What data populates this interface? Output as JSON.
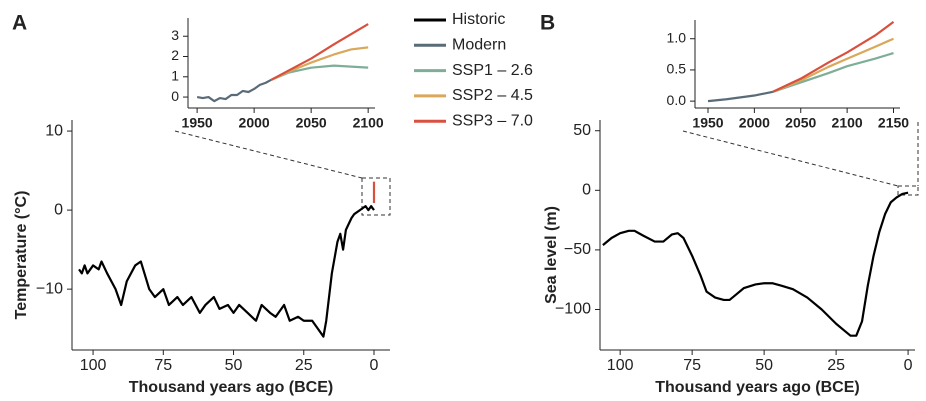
{
  "chart_data": [
    {
      "type": "line",
      "panel": "A",
      "xlabel": "Thousand years ago (BCE)",
      "ylabel": "Temperature (°C)",
      "xlim": [
        107.5,
        -5.7
      ],
      "ylim": [
        -17.7,
        11.4
      ],
      "xticks": [
        100,
        75,
        50,
        25,
        0
      ],
      "yticks": [
        {
          "value": -10,
          "label": "−10"
        },
        0,
        10
      ],
      "series": [
        {
          "name": "Historic",
          "color": "#000000",
          "x": [
            105,
            104,
            103,
            102,
            100,
            98,
            97,
            95,
            92,
            90,
            88,
            85,
            83,
            80,
            78,
            75,
            73,
            70,
            68,
            65,
            62,
            60,
            57,
            55,
            52,
            50,
            48,
            45,
            42,
            40,
            37,
            35,
            32,
            30,
            27,
            25,
            22,
            20,
            18,
            17,
            15,
            13,
            12,
            11,
            10,
            8,
            7,
            5,
            3,
            2,
            1,
            0
          ],
          "values": [
            -7.5,
            -8,
            -7,
            -8,
            -7,
            -7.5,
            -6.5,
            -8,
            -10,
            -12,
            -9,
            -7,
            -6.5,
            -10,
            -11,
            -10,
            -12,
            -11,
            -12,
            -11,
            -13,
            -12,
            -11,
            -12.5,
            -12,
            -13,
            -12,
            -13,
            -14,
            -12,
            -13,
            -13.5,
            -12,
            -14,
            -13.5,
            -14,
            -14,
            -15,
            -16,
            -14,
            -8,
            -4,
            -3,
            -5,
            -2.5,
            -1,
            -0.5,
            0,
            0.5,
            0,
            0.5,
            0
          ]
        },
        {
          "name": "SSP3 – 7.0",
          "color": "#d9503e",
          "x": [
            0,
            0
          ],
          "values": [
            0.9,
            3.6
          ]
        }
      ]
    },
    {
      "type": "line",
      "xlim": [
        1942,
        2106
      ],
      "ylim": [
        -0.54,
        3.9
      ],
      "xticks": [
        1950,
        2000,
        2050,
        2100
      ],
      "yticks": [
        0,
        1,
        2,
        3
      ],
      "series": [
        {
          "name": "Modern",
          "color": "#5a6b78",
          "x": [
            1950,
            1955,
            1960,
            1965,
            1970,
            1975,
            1980,
            1985,
            1990,
            1995,
            2000,
            2005,
            2010,
            2015
          ],
          "values": [
            0,
            -0.05,
            0,
            -0.2,
            -0.05,
            -0.1,
            0.1,
            0.1,
            0.3,
            0.25,
            0.4,
            0.6,
            0.7,
            0.85
          ]
        },
        {
          "name": "SSP1 – 2.6",
          "color": "#7fae98",
          "x": [
            2015,
            2030,
            2050,
            2070,
            2085,
            2100
          ],
          "values": [
            0.85,
            1.2,
            1.45,
            1.55,
            1.5,
            1.45
          ]
        },
        {
          "name": "SSP2 – 4.5",
          "color": "#d9a85a",
          "x": [
            2015,
            2030,
            2050,
            2070,
            2085,
            2100
          ],
          "values": [
            0.85,
            1.25,
            1.7,
            2.1,
            2.35,
            2.45
          ]
        },
        {
          "name": "SSP3 – 7.0",
          "color": "#d9503e",
          "x": [
            2015,
            2030,
            2050,
            2070,
            2085,
            2100
          ],
          "values": [
            0.85,
            1.3,
            1.9,
            2.6,
            3.1,
            3.6
          ]
        }
      ]
    },
    {
      "type": "line",
      "panel": "B",
      "xlabel": "Thousand years ago (BCE)",
      "ylabel": "Sea level (m)",
      "xlim": [
        107,
        -2.4
      ],
      "ylim": [
        -134,
        59
      ],
      "xticks": [
        100,
        75,
        50,
        25,
        0
      ],
      "yticks": [
        {
          "value": -100,
          "label": "−100"
        },
        {
          "value": -50,
          "label": "−50"
        },
        0,
        50
      ],
      "series": [
        {
          "name": "Historic",
          "color": "#000000",
          "x": [
            106,
            103,
            100,
            97,
            95,
            92,
            88,
            85,
            82,
            80,
            78,
            75,
            72,
            70,
            67,
            64,
            62,
            60,
            57,
            53,
            50,
            47,
            44,
            40,
            35,
            30,
            25,
            22,
            20,
            18,
            16,
            14,
            12,
            10,
            8,
            6,
            4,
            2,
            0
          ],
          "values": [
            -46,
            -40,
            -36,
            -34,
            -34,
            -38,
            -43,
            -43,
            -37,
            -36,
            -40,
            -55,
            -72,
            -85,
            -90,
            -92,
            -92,
            -88,
            -82,
            -79,
            -78,
            -78,
            -80,
            -83,
            -90,
            -100,
            -112,
            -118,
            -122,
            -122,
            -110,
            -80,
            -55,
            -35,
            -20,
            -10,
            -6,
            -3,
            -2
          ]
        }
      ]
    },
    {
      "type": "line",
      "xlim": [
        1936,
        2157
      ],
      "ylim": [
        -0.11,
        1.3
      ],
      "xticks": [
        1950,
        2000,
        2050,
        2100,
        2150
      ],
      "yticks": [
        {
          "value": 0,
          "label": "0.0"
        },
        {
          "value": 0.5,
          "label": "0.5"
        },
        {
          "value": 1,
          "label": "1.0"
        }
      ],
      "series": [
        {
          "name": "Modern",
          "color": "#5a6b78",
          "x": [
            1950,
            1970,
            1990,
            2000,
            2010,
            2020
          ],
          "values": [
            0,
            0.03,
            0.07,
            0.09,
            0.12,
            0.15
          ]
        },
        {
          "name": "SSP1 – 2.6",
          "color": "#7fae98",
          "x": [
            2020,
            2050,
            2080,
            2100,
            2130,
            2150
          ],
          "values": [
            0.15,
            0.3,
            0.45,
            0.56,
            0.68,
            0.77
          ]
        },
        {
          "name": "SSP2 – 4.5",
          "color": "#d9a85a",
          "x": [
            2020,
            2050,
            2080,
            2100,
            2130,
            2150
          ],
          "values": [
            0.15,
            0.33,
            0.55,
            0.68,
            0.87,
            1.0
          ]
        },
        {
          "name": "SSP3 – 7.0",
          "color": "#d9503e",
          "x": [
            2020,
            2050,
            2080,
            2100,
            2130,
            2150
          ],
          "values": [
            0.15,
            0.36,
            0.62,
            0.78,
            1.05,
            1.27
          ]
        }
      ]
    }
  ]
}
